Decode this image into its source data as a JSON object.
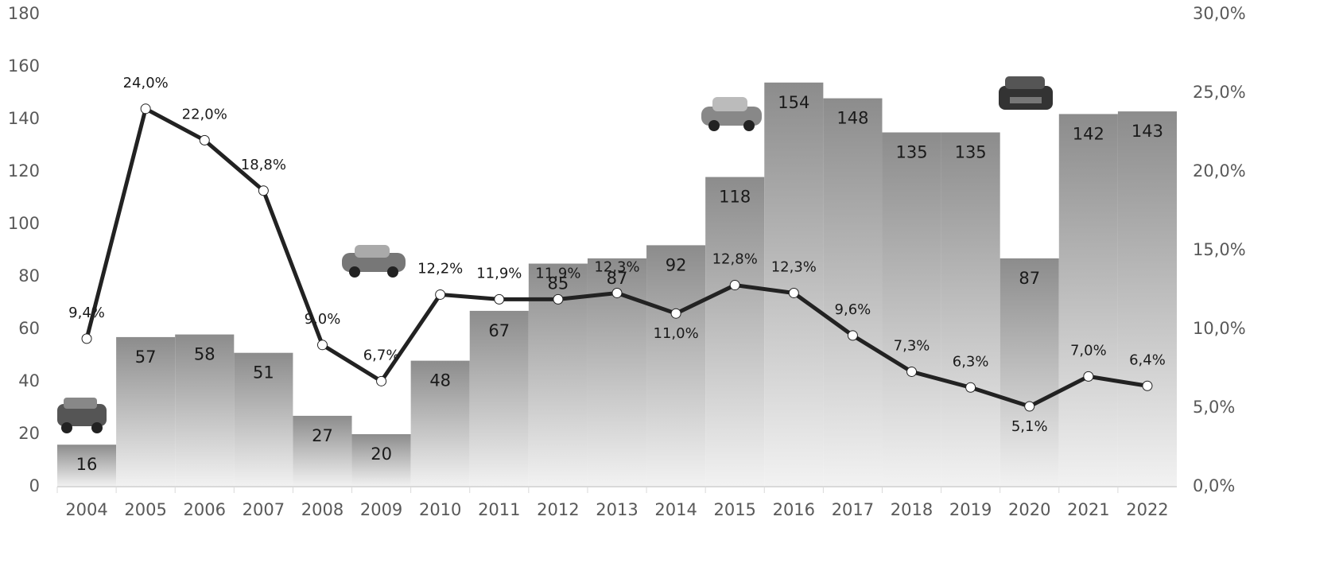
{
  "chart_data": {
    "type": "bar",
    "categories": [
      "2004",
      "2005",
      "2006",
      "2007",
      "2008",
      "2009",
      "2010",
      "2011",
      "2012",
      "2013",
      "2014",
      "2015",
      "2016",
      "2017",
      "2018",
      "2019",
      "2020",
      "2021",
      "2022"
    ],
    "series": [
      {
        "color": "#8c8c8c",
        "values": [
          16,
          57,
          58,
          51,
          27,
          20,
          48,
          67,
          85,
          87,
          92,
          118,
          154,
          148,
          135,
          135,
          87,
          142,
          143
        ]
      },
      {
        "type": "line",
        "axis": "y2",
        "color": "#222222",
        "values": [
          9.4,
          24.0,
          22.0,
          18.8,
          9.0,
          6.7,
          12.2,
          11.9,
          11.9,
          12.3,
          11.0,
          12.8,
          12.3,
          9.6,
          7.3,
          6.3,
          5.1,
          7.0,
          6.4
        ],
        "value_labels": [
          "9,4%",
          "24,0%",
          "22,0%",
          "18,8%",
          "9,0%",
          "6,7%",
          "12,2%",
          "11,9%",
          "11,9%",
          "12,3%",
          "11,0%",
          "12,8%",
          "12,3%",
          "9,6%",
          "7,3%",
          "6,3%",
          "5,1%",
          "7,0%",
          "6,4%"
        ]
      }
    ],
    "ylim": [
      0,
      180
    ],
    "yticks": [
      0,
      20,
      40,
      60,
      80,
      100,
      120,
      140,
      160,
      180
    ],
    "y2lim": [
      0,
      30
    ],
    "y2ticks": [
      {
        "value": 0,
        "label": "0,0%"
      },
      {
        "value": 5,
        "label": "5,0%"
      },
      {
        "value": 10,
        "label": "10,0%"
      },
      {
        "value": 15,
        "label": "15,0%"
      },
      {
        "value": 20,
        "label": "20,0%"
      },
      {
        "value": 25,
        "label": "25,0%"
      },
      {
        "value": 30,
        "label": "30,0%"
      }
    ]
  }
}
